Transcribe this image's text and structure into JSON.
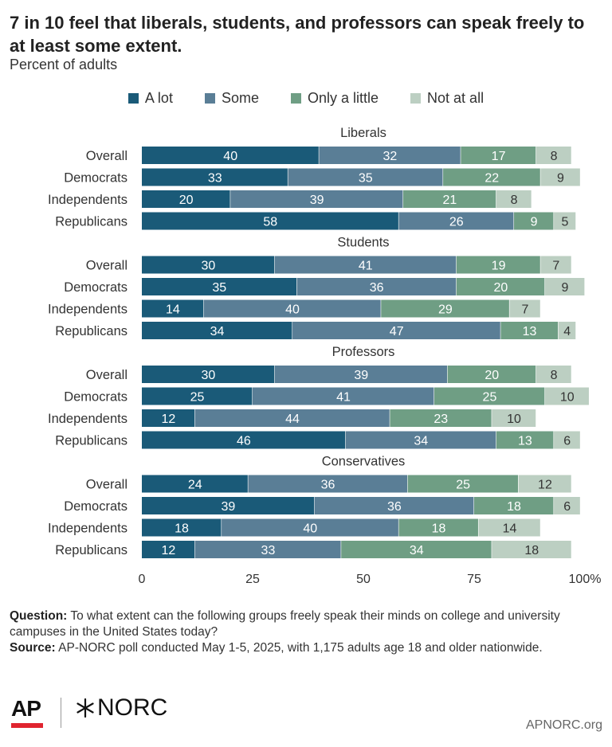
{
  "title": "7 in 10 feel that liberals, students, and professors can speak freely to at least some extent.",
  "subtitle": "Percent of adults",
  "legend": [
    {
      "label": "A lot",
      "color": "#1a5a78"
    },
    {
      "label": "Some",
      "color": "#5a7e96"
    },
    {
      "label": "Only a little",
      "color": "#6f9e84"
    },
    {
      "label": "Not at all",
      "color": "#bccfc2"
    }
  ],
  "chart_data": {
    "type": "bar",
    "orientation": "horizontal",
    "stacked": true,
    "xlim": [
      0,
      100
    ],
    "xticks": [
      "0",
      "25",
      "50",
      "75",
      "100%"
    ],
    "series": [
      "A lot",
      "Some",
      "Only a little",
      "Not at all"
    ],
    "colors": [
      "#1a5a78",
      "#5a7e96",
      "#6f9e84",
      "#bccfc2"
    ],
    "label_colors": [
      "#ffffff",
      "#ffffff",
      "#ffffff",
      "#333333"
    ],
    "groups": [
      {
        "name": "Liberals",
        "rows": [
          {
            "label": "Overall",
            "values": [
              40,
              32,
              17,
              8
            ]
          },
          {
            "label": "Democrats",
            "values": [
              33,
              35,
              22,
              9
            ]
          },
          {
            "label": "Independents",
            "values": [
              20,
              39,
              21,
              8
            ]
          },
          {
            "label": "Republicans",
            "values": [
              58,
              26,
              9,
              5
            ]
          }
        ]
      },
      {
        "name": "Students",
        "rows": [
          {
            "label": "Overall",
            "values": [
              30,
              41,
              19,
              7
            ]
          },
          {
            "label": "Democrats",
            "values": [
              35,
              36,
              20,
              9
            ]
          },
          {
            "label": "Independents",
            "values": [
              14,
              40,
              29,
              7
            ]
          },
          {
            "label": "Republicans",
            "values": [
              34,
              47,
              13,
              4
            ]
          }
        ]
      },
      {
        "name": "Professors",
        "rows": [
          {
            "label": "Overall",
            "values": [
              30,
              39,
              20,
              8
            ]
          },
          {
            "label": "Democrats",
            "values": [
              25,
              41,
              25,
              10
            ]
          },
          {
            "label": "Independents",
            "values": [
              12,
              44,
              23,
              10
            ]
          },
          {
            "label": "Republicans",
            "values": [
              46,
              34,
              13,
              6
            ]
          }
        ]
      },
      {
        "name": "Conservatives",
        "rows": [
          {
            "label": "Overall",
            "values": [
              24,
              36,
              25,
              12
            ]
          },
          {
            "label": "Democrats",
            "values": [
              39,
              36,
              18,
              6
            ]
          },
          {
            "label": "Independents",
            "values": [
              18,
              40,
              18,
              14
            ]
          },
          {
            "label": "Republicans",
            "values": [
              12,
              33,
              34,
              18
            ]
          }
        ]
      }
    ]
  },
  "notes": {
    "question_label": "Question:",
    "question_text": "To what extent can the following groups freely speak their minds on college and university campuses in the United States today?",
    "source_label": "Source:",
    "source_text": "AP-NORC poll conducted May 1-5, 2025, with 1,175 adults age 18 and older nationwide."
  },
  "footer": {
    "ap_logo": "AP",
    "norc_logo": "NORC",
    "norc_icon": "asterisk-icon",
    "site": "APNORC.org"
  }
}
